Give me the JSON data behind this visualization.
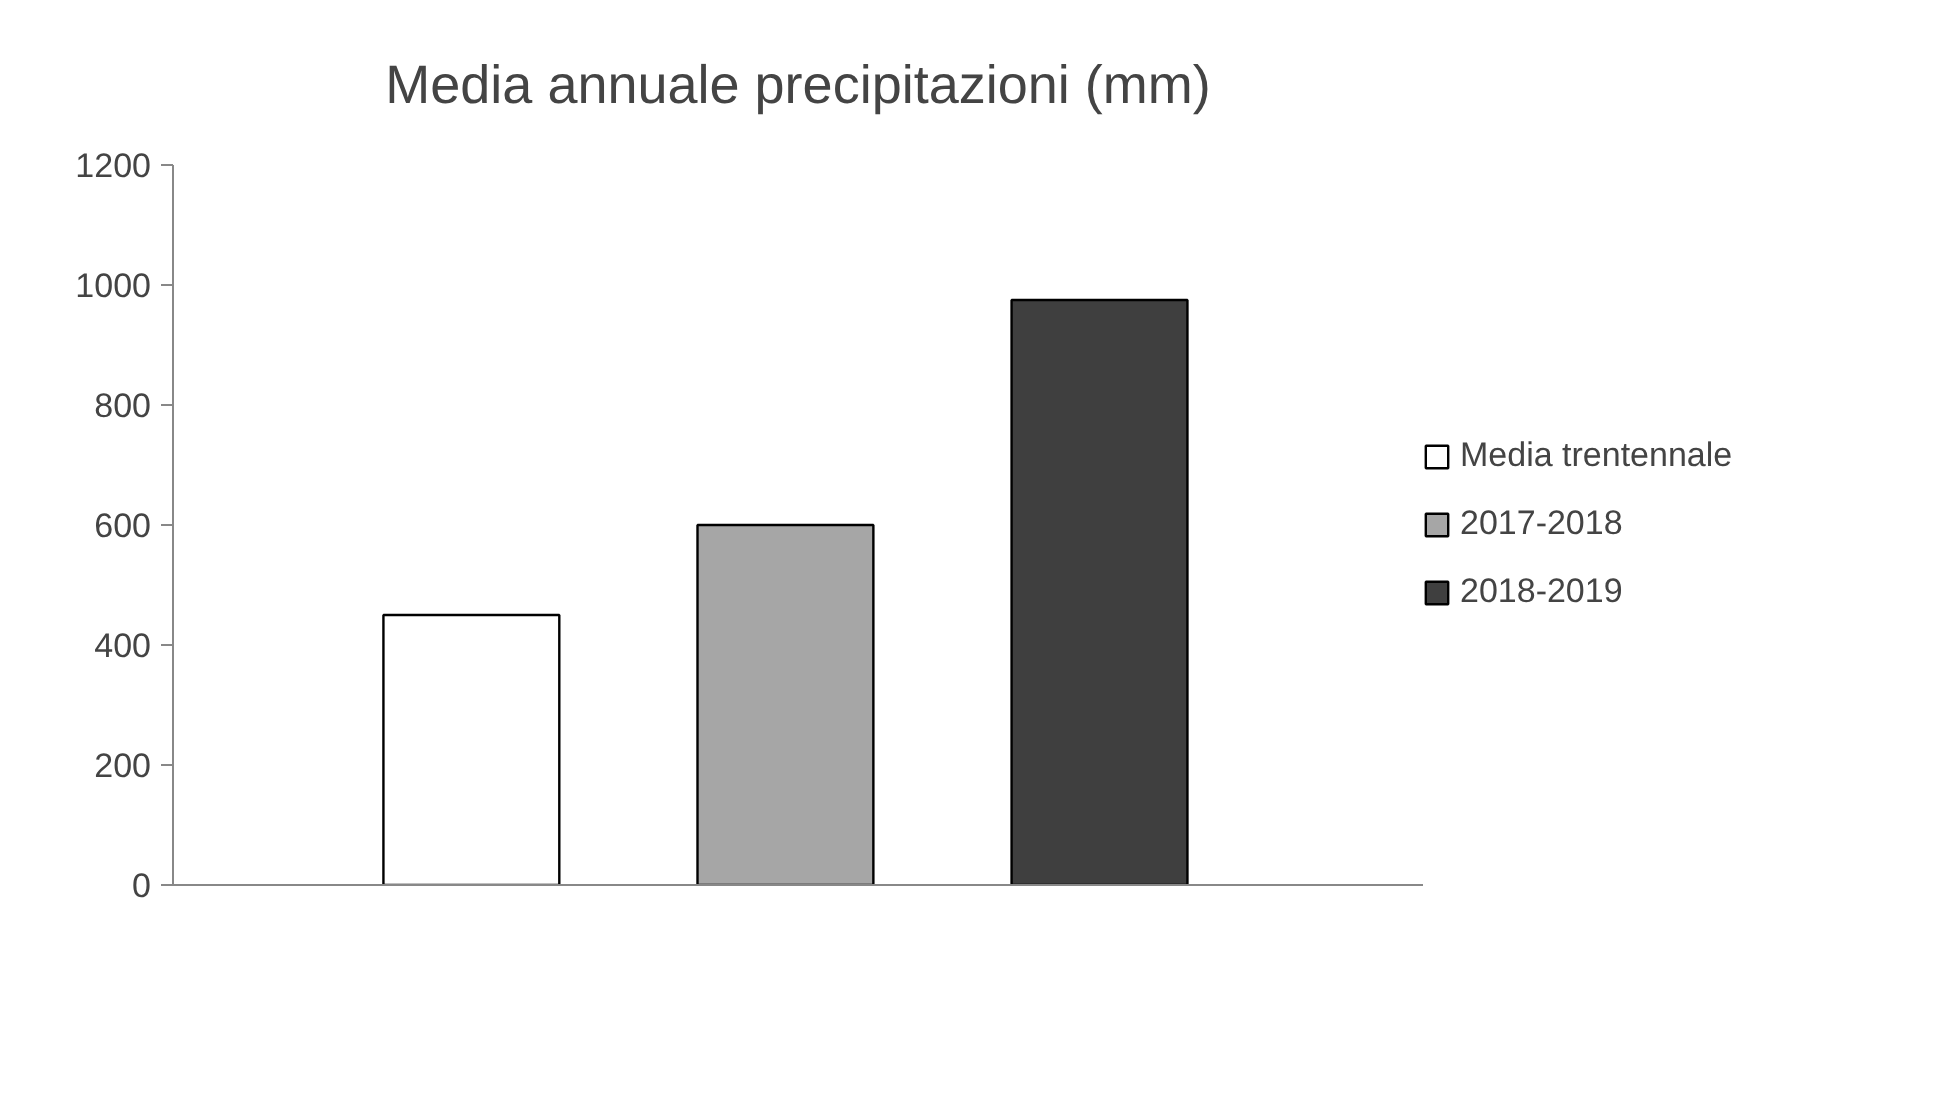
{
  "chart_data": {
    "type": "bar",
    "title": "Media annuale precipitazioni (mm)",
    "categories": [
      null,
      null,
      null
    ],
    "series": [
      {
        "name": "Media trentennale",
        "color": "#ffffff",
        "values": [
          450,
          null,
          null
        ]
      },
      {
        "name": "2017-2018",
        "color": "#a6a6a6",
        "values": [
          null,
          600,
          null
        ]
      },
      {
        "name": "2018-2019",
        "color": "#3f3f3f",
        "values": [
          null,
          null,
          975
        ]
      }
    ],
    "ylim": [
      0,
      1200
    ],
    "yticks": [
      0,
      200,
      400,
      600,
      800,
      1000,
      1200
    ],
    "grid": false,
    "legend": "right"
  }
}
